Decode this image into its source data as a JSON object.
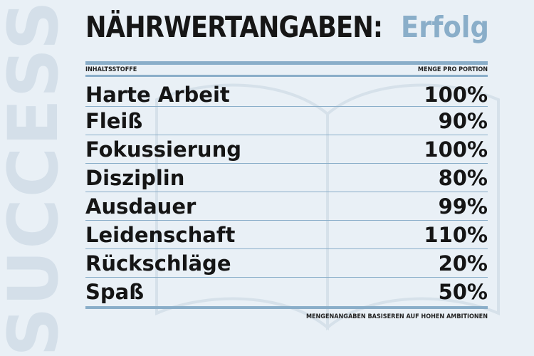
{
  "background_word": "SUCCESS",
  "title": {
    "main": "NÄHRWERTANGABEN:",
    "accent": "Erfolg"
  },
  "header": {
    "left": "INHALTSSTOFFE",
    "right": "MENGE PRO PORTION"
  },
  "rows": [
    {
      "name": "Harte Arbeit",
      "amount": "100%"
    },
    {
      "name": "Fleiß",
      "amount": "90%"
    },
    {
      "name": "Fokussierung",
      "amount": "100%"
    },
    {
      "name": "Disziplin",
      "amount": "80%"
    },
    {
      "name": "Ausdauer",
      "amount": "99%"
    },
    {
      "name": "Leidenschaft",
      "amount": "110%"
    },
    {
      "name": "Rückschläge",
      "amount": "20%"
    },
    {
      "name": "Spaß",
      "amount": "50%"
    }
  ],
  "footnote": "MENGENANGABEN BASISEREN AUF HOHEN AMBITIONEN",
  "colors": {
    "accent": "#8aaec9",
    "background": "#e9f0f6",
    "text": "#151515"
  }
}
